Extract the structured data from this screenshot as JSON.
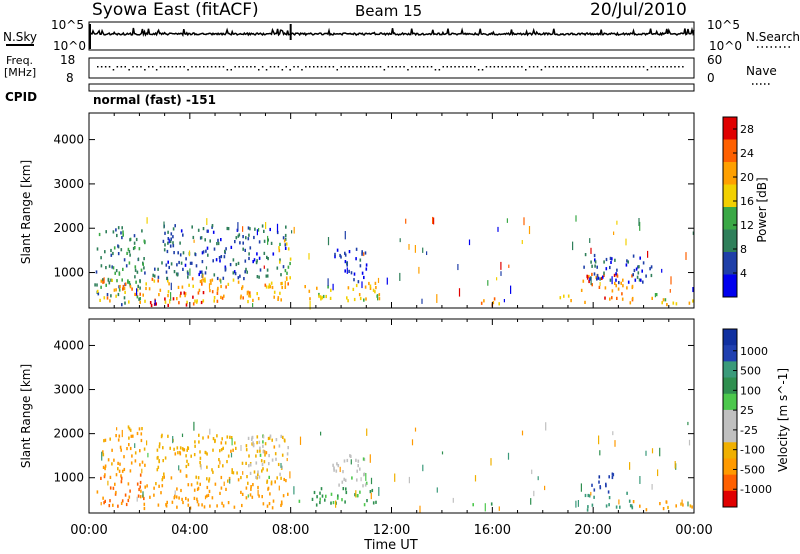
{
  "header": {
    "station": "Syowa East (fitACF)",
    "beam": "Beam 15",
    "date": "20/Jul/2010"
  },
  "top_panels": {
    "nsky_label": "N.Sky",
    "nsearch_label": "N.Search",
    "nsky_ticks": [
      "10^5",
      "10^0"
    ],
    "nsearch_ticks": [
      "10^5",
      "10^0"
    ],
    "freq_label": "Freq.",
    "freq_unit": "[MHz]",
    "freq_ticks": [
      "18",
      "8"
    ],
    "nave_label": "Nave",
    "nave_ticks": [
      "60",
      "0"
    ],
    "cpid_label": "CPID",
    "cpid_text": "normal (fast) -151"
  },
  "colors": {
    "power_scale": [
      "#0000ee",
      "#1f3fa8",
      "#2f7f5a",
      "#3aa845",
      "#f2d000",
      "#ffa000",
      "#ff6000",
      "#e00000"
    ],
    "velocity_scale": [
      "#e00000",
      "#ff6000",
      "#ff9a00",
      "#f0b000",
      "#c0c0c0",
      "#c0c0c0",
      "#4cc84c",
      "#2f8f4f",
      "#3a9a7a",
      "#2040b0",
      "#1030a0"
    ]
  },
  "chart_data": [
    {
      "type": "heatmap",
      "ylabel": "Slant Range [km]",
      "ylim": [
        200,
        4600
      ],
      "y_ticks": [
        "1000",
        "2000",
        "3000",
        "4000"
      ],
      "xlim_hours": [
        0,
        24
      ],
      "x_ticks": [],
      "colorbar_label": "Power [dB]",
      "colorbar_ticks": [
        "4",
        "8",
        "12",
        "16",
        "20",
        "24",
        "28"
      ],
      "colorbar_range": [
        0,
        30
      ],
      "echo_regions": [
        {
          "t0": 0.2,
          "t1": 2.2,
          "r0": 300,
          "r1": 2100,
          "power": 10
        },
        {
          "t0": 0.3,
          "t1": 7.9,
          "r0": 350,
          "r1": 900,
          "power": 20
        },
        {
          "t0": 2.4,
          "t1": 4.6,
          "r0": 280,
          "r1": 600,
          "power": 28
        },
        {
          "t0": 2.5,
          "t1": 7.8,
          "r0": 900,
          "r1": 2100,
          "power": 7
        },
        {
          "t0": 7.5,
          "t1": 8.0,
          "r0": 800,
          "r1": 1800,
          "power": 16
        },
        {
          "t0": 8.3,
          "t1": 11.5,
          "r0": 400,
          "r1": 800,
          "power": 18
        },
        {
          "t0": 9.6,
          "t1": 11.0,
          "r0": 800,
          "r1": 1600,
          "power": 4
        },
        {
          "t0": 15.2,
          "t1": 16.4,
          "r0": 300,
          "r1": 450,
          "power": 20
        },
        {
          "t0": 18.6,
          "t1": 19.3,
          "r0": 400,
          "r1": 550,
          "power": 16
        },
        {
          "t0": 19.5,
          "t1": 21.6,
          "r0": 350,
          "r1": 1000,
          "power": 24
        },
        {
          "t0": 19.6,
          "t1": 22.3,
          "r0": 800,
          "r1": 1500,
          "power": 6
        },
        {
          "t0": 22.2,
          "t1": 24.0,
          "r0": 300,
          "r1": 550,
          "power": 18
        }
      ]
    },
    {
      "type": "heatmap",
      "ylabel": "Slant Range [km]",
      "xlabel": "Time UT",
      "ylim": [
        200,
        4600
      ],
      "y_ticks": [
        "1000",
        "2000",
        "3000",
        "4000"
      ],
      "xlim_hours": [
        0,
        24
      ],
      "x_ticks": [
        "00:00",
        "04:00",
        "08:00",
        "12:00",
        "16:00",
        "20:00",
        "00:00"
      ],
      "colorbar_label": "Velocity [m s^-1]",
      "colorbar_ticks": [
        "1000",
        "500",
        "100",
        "25",
        "-25",
        "-100",
        "-500",
        "-1000"
      ],
      "echo_regions": [
        {
          "t0": 0.2,
          "t1": 2.2,
          "r0": 300,
          "r1": 1100,
          "velocity": -600
        },
        {
          "t0": 0.5,
          "t1": 2.2,
          "r0": 1100,
          "r1": 2200,
          "velocity": -120
        },
        {
          "t0": 2.0,
          "t1": 7.9,
          "r0": 350,
          "r1": 900,
          "velocity": -150
        },
        {
          "t0": 2.5,
          "t1": 7.8,
          "r0": 900,
          "r1": 2000,
          "velocity": -80
        },
        {
          "t0": 6.3,
          "t1": 7.9,
          "r0": 1000,
          "r1": 2000,
          "velocity": 0
        },
        {
          "t0": 8.3,
          "t1": 11.5,
          "r0": 400,
          "r1": 800,
          "velocity": 60
        },
        {
          "t0": 9.6,
          "t1": 11.0,
          "r0": 800,
          "r1": 1600,
          "velocity": 0
        },
        {
          "t0": 15.2,
          "t1": 16.4,
          "r0": 300,
          "r1": 450,
          "velocity": 60
        },
        {
          "t0": 19.5,
          "t1": 21.6,
          "r0": 300,
          "r1": 700,
          "velocity": 300
        },
        {
          "t0": 19.8,
          "t1": 20.8,
          "r0": 700,
          "r1": 1200,
          "velocity": 800
        },
        {
          "t0": 21.5,
          "t1": 24.0,
          "r0": 300,
          "r1": 500,
          "velocity": -120
        }
      ]
    }
  ]
}
